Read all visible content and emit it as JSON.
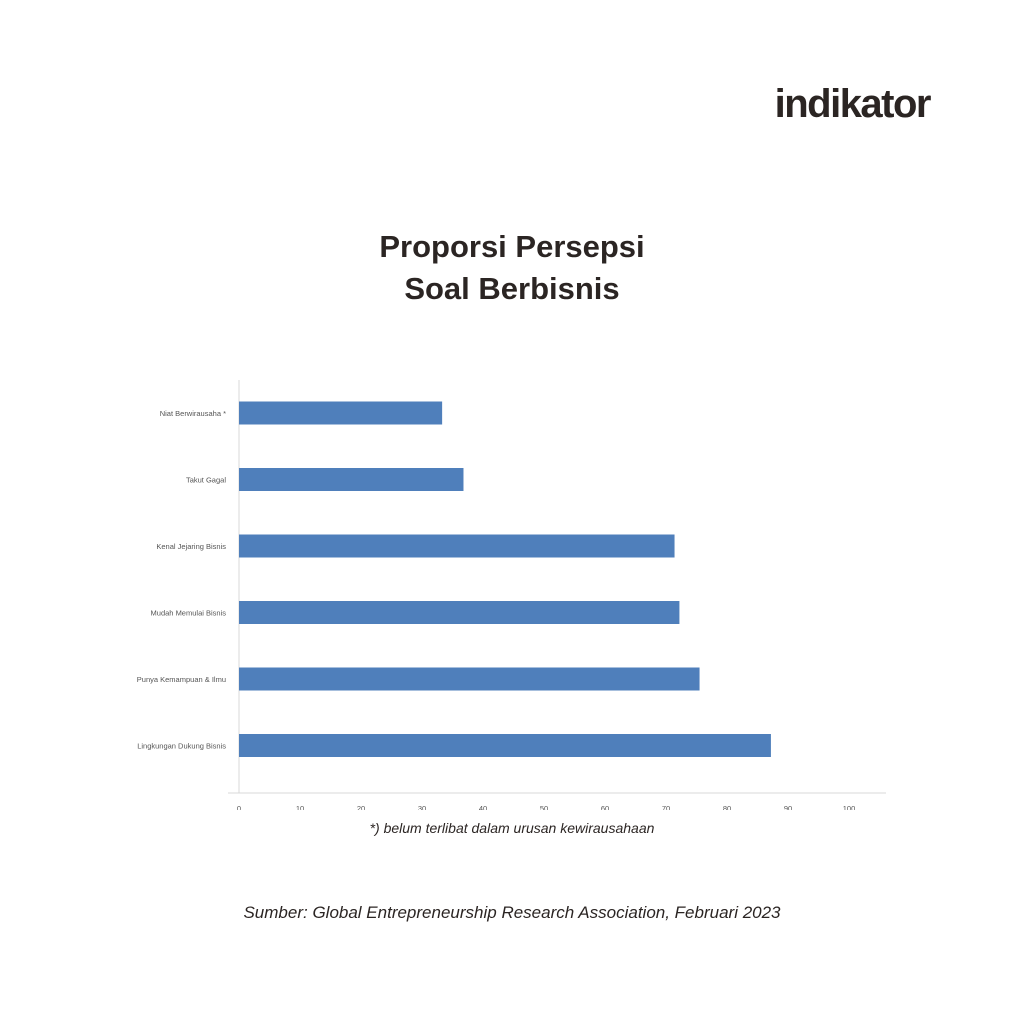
{
  "brand": {
    "logo_text": "indikator"
  },
  "chart_data": {
    "type": "bar",
    "orientation": "horizontal",
    "title": [
      "Proporsi Persepsi",
      "Soal Berbisnis"
    ],
    "categories": [
      "Niat Berwirausaha *",
      "Takut Gagal",
      "Kenal Jejaring Bisnis",
      "Mudah Memulai Bisnis",
      "Punya Kemampuan & Ilmu",
      "Lingkungan Dukung Bisnis"
    ],
    "values": [
      33.3,
      36.8,
      71.4,
      72.2,
      75.5,
      87.2
    ],
    "xlim": [
      0,
      100
    ],
    "xticks": [
      0,
      10,
      20,
      30,
      40,
      50,
      60,
      70,
      80,
      90,
      100
    ],
    "bar_color": "#4f7fbb",
    "grid": false
  },
  "footnote": "*) belum terlibat dalam urusan kewirausahaan",
  "source": "Sumber: Global Entrepreneurship Research Association, Februari 2023"
}
